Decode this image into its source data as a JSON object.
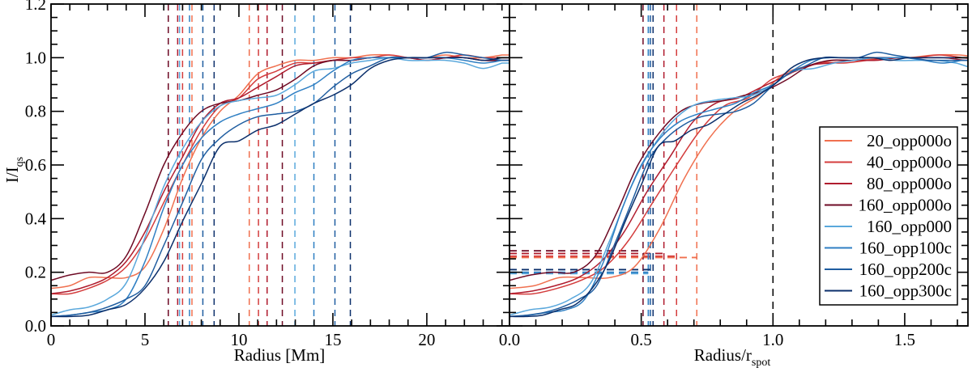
{
  "chart_data": [
    {
      "type": "line",
      "xlabel": "Radius [Mm]",
      "ylabel": "I/I",
      "ylabel_sub": "qs",
      "xlim": [
        0,
        24.4
      ],
      "ylim": [
        0,
        1.2
      ],
      "xticks": [
        0,
        5,
        10,
        15,
        20
      ],
      "xtick_labels": [
        "0",
        "5",
        "10",
        "15",
        "20"
      ],
      "yticks": [
        0,
        0.2,
        0.4,
        0.6,
        0.8,
        1.0,
        1.2
      ],
      "ytick_labels": [
        "0.0",
        "0.2",
        "0.4",
        "0.6",
        "0.8",
        "1.0",
        "1.2"
      ],
      "grid": false
    },
    {
      "type": "line",
      "xlabel": "Radius/r",
      "xlabel_sub": "spot",
      "xlim": [
        0,
        1.74
      ],
      "ylim": [
        0,
        1.2
      ],
      "xticks": [
        0,
        0.5,
        1.0,
        1.5
      ],
      "xtick_labels": [
        "0.0",
        "0.5",
        "1.0",
        "1.5"
      ],
      "reference_line_x": 1.0,
      "grid": false,
      "legend": "right"
    }
  ],
  "x": [
    0,
    1,
    2,
    3,
    4,
    5,
    6,
    7,
    8,
    9,
    10,
    11,
    12,
    13,
    14,
    15,
    16,
    17,
    18,
    19,
    20,
    21,
    22,
    23,
    24
  ],
  "series": [
    {
      "name": "20_opp000o",
      "color": "#f0704f",
      "r_inner": 7.5,
      "r_spot": 10.55,
      "umbra_level": 0.255,
      "values": [
        0.14,
        0.15,
        0.18,
        0.18,
        0.18,
        0.22,
        0.36,
        0.55,
        0.7,
        0.8,
        0.86,
        0.94,
        0.97,
        0.99,
        0.99,
        1.0,
        1.0,
        1.01,
        1.01,
        1.0,
        1.0,
        1.01,
        1.0,
        1.0,
        1.01
      ]
    },
    {
      "name": "40_opp000o",
      "color": "#d43d3d",
      "r_inner": 7.0,
      "r_spot": 11.04,
      "umbra_level": 0.26,
      "values": [
        0.12,
        0.12,
        0.14,
        0.17,
        0.22,
        0.32,
        0.46,
        0.6,
        0.73,
        0.82,
        0.85,
        0.92,
        0.95,
        0.98,
        0.98,
        0.99,
        1.0,
        1.0,
        1.01,
        1.0,
        0.99,
        1.0,
        1.01,
        1.0,
        1.0
      ]
    },
    {
      "name": "80_opp000o",
      "color": "#b01c2e",
      "r_inner": 6.74,
      "r_spot": 11.5,
      "umbra_level": 0.27,
      "values": [
        0.12,
        0.13,
        0.15,
        0.18,
        0.24,
        0.35,
        0.5,
        0.63,
        0.76,
        0.83,
        0.85,
        0.89,
        0.93,
        0.97,
        0.98,
        0.99,
        0.99,
        1.0,
        1.0,
        1.0,
        0.99,
        1.0,
        1.0,
        0.99,
        0.99
      ]
    },
    {
      "name": "160_opp000o",
      "color": "#6e0a24",
      "r_inner": 6.24,
      "r_spot": 12.31,
      "umbra_level": 0.28,
      "values": [
        0.17,
        0.19,
        0.2,
        0.2,
        0.26,
        0.42,
        0.6,
        0.72,
        0.8,
        0.83,
        0.84,
        0.86,
        0.88,
        0.92,
        0.97,
        0.99,
        0.99,
        1.0,
        1.0,
        1.0,
        1.0,
        1.0,
        1.0,
        0.99,
        0.99
      ]
    },
    {
      "name": "160_opp000",
      "color": "#5aa8dc",
      "r_inner": 6.84,
      "r_spot": 12.98,
      "umbra_level": 0.195,
      "values": [
        0.04,
        0.06,
        0.07,
        0.1,
        0.16,
        0.33,
        0.52,
        0.66,
        0.76,
        0.82,
        0.84,
        0.85,
        0.86,
        0.9,
        0.95,
        0.96,
        0.98,
        0.99,
        1.0,
        0.99,
        0.99,
        0.99,
        0.98,
        0.96,
        0.98
      ]
    },
    {
      "name": "160_opp100c",
      "color": "#2f7fc3",
      "r_inner": 7.37,
      "r_spot": 13.99,
      "umbra_level": 0.2,
      "values": [
        0.035,
        0.04,
        0.05,
        0.06,
        0.1,
        0.24,
        0.44,
        0.6,
        0.7,
        0.76,
        0.79,
        0.81,
        0.83,
        0.87,
        0.9,
        0.95,
        0.99,
        1.0,
        1.0,
        1.0,
        1.0,
        1.0,
        0.99,
        0.98,
        0.99
      ]
    },
    {
      "name": "160_opp200c",
      "color": "#1f5da0",
      "r_inner": 8.08,
      "r_spot": 15.11,
      "umbra_level": 0.21,
      "values": [
        0.035,
        0.04,
        0.05,
        0.07,
        0.1,
        0.15,
        0.3,
        0.46,
        0.62,
        0.7,
        0.75,
        0.78,
        0.79,
        0.8,
        0.83,
        0.89,
        0.94,
        0.97,
        1.0,
        1.0,
        1.0,
        1.02,
        1.01,
        1.0,
        0.99
      ]
    },
    {
      "name": "160_opp300c",
      "color": "#0b2f6b",
      "r_inner": 8.68,
      "r_spot": 15.93,
      "umbra_level": 0.21,
      "values": [
        0.035,
        0.035,
        0.04,
        0.06,
        0.08,
        0.14,
        0.24,
        0.39,
        0.53,
        0.67,
        0.69,
        0.73,
        0.75,
        0.79,
        0.83,
        0.86,
        0.9,
        0.96,
        0.99,
        1.0,
        1.0,
        1.0,
        1.0,
        0.99,
        1.0
      ]
    }
  ]
}
